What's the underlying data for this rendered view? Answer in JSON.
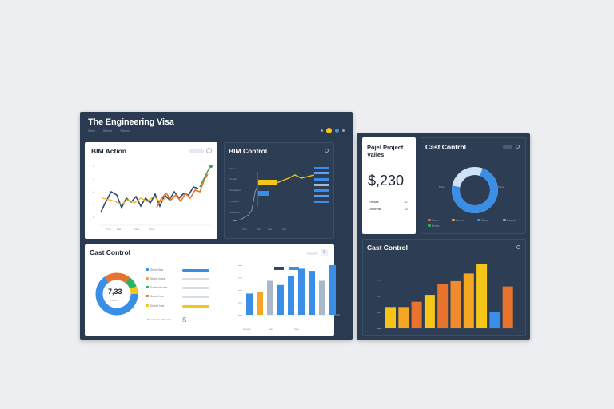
{
  "main_window": {
    "title": "The Engineering Visa",
    "menu": [
      "Stime",
      "Stumar",
      "Scheme"
    ],
    "toolbar_icons": [
      "settings-icon",
      "help-icon",
      "user-icon",
      "menu-icon"
    ],
    "icon_colors": [
      "#9aa7b8",
      "#f5c518",
      "#4a90d9",
      "#9aa7b8"
    ]
  },
  "bim_action": {
    "title": "BIM Action",
    "x_labels": [
      "Tme",
      "Bae",
      "Tane",
      "Tess"
    ],
    "y_labels": [
      "3",
      "4",
      "2",
      "3",
      "1"
    ],
    "line_colors": [
      "#2f4a6e",
      "#f0b429",
      "#e8732c",
      "#3aa35b"
    ]
  },
  "bim_control": {
    "title": "BIM Control",
    "left_labels": [
      "Tlotoo",
      "Toarlec",
      "Toaedpeer",
      "Troteees",
      "Toaerdon"
    ],
    "x_labels": [
      "Sum",
      "Slm",
      "Aae",
      "Sue"
    ]
  },
  "cost_control_left": {
    "title": "Cast Control",
    "donut_value": "7,33",
    "donut_caption": "Potaroi",
    "legend": [
      "Stored Itew",
      "Stamd Inowe",
      "Sonewd Inoide",
      "Sonedt Inde",
      "Sbrhee Inde"
    ],
    "legend_colors": [
      "#3a8ee6",
      "#f5a623",
      "#28b463",
      "#e8732c",
      "#f5c518"
    ],
    "footer": "Bnceo Inroded Bromacc",
    "x_labels": [
      "Gusam",
      "Aanl",
      "Seiu"
    ],
    "bar_chart": {
      "type": "bar",
      "values": [
        30,
        32,
        48,
        42,
        55,
        65,
        62,
        48,
        70
      ],
      "colors": [
        "#3a8ee6",
        "#f5a623",
        "#a9b8c8",
        "#3a8ee6",
        "#3a8ee6",
        "#3a8ee6",
        "#3a8ee6",
        "#a9b8c8",
        "#3a8ee6"
      ]
    }
  },
  "project_values": {
    "title": "Pojel Project Valles",
    "amount": "$,230",
    "rows": [
      {
        "label": "Rmaes",
        "value": "12"
      },
      {
        "label": "Dmarear",
        "value": "13"
      }
    ]
  },
  "cost_control_right": {
    "title": "Cast Control",
    "donut_label_left": "Brabe",
    "donut_label_right": "Fnlae",
    "legend": [
      "Stone",
      "Bertee",
      "Pmnee",
      "Stnmo",
      "Bassed"
    ],
    "legend_colors": [
      "#e8732c",
      "#28b463",
      "#f5a623",
      "#3a8ee6",
      "#9aa7b8"
    ]
  },
  "cost_control_bottom": {
    "title": "Cast Control",
    "chart_data": {
      "type": "bar",
      "values": [
        28,
        28,
        35,
        44,
        58,
        62,
        72,
        85,
        22,
        55
      ],
      "colors": [
        "#f5c518",
        "#f5a623",
        "#e8732c",
        "#f5c518",
        "#e8732c",
        "#f08b30",
        "#f5a623",
        "#f5c518",
        "#3a8ee6",
        "#e8732c"
      ]
    }
  }
}
